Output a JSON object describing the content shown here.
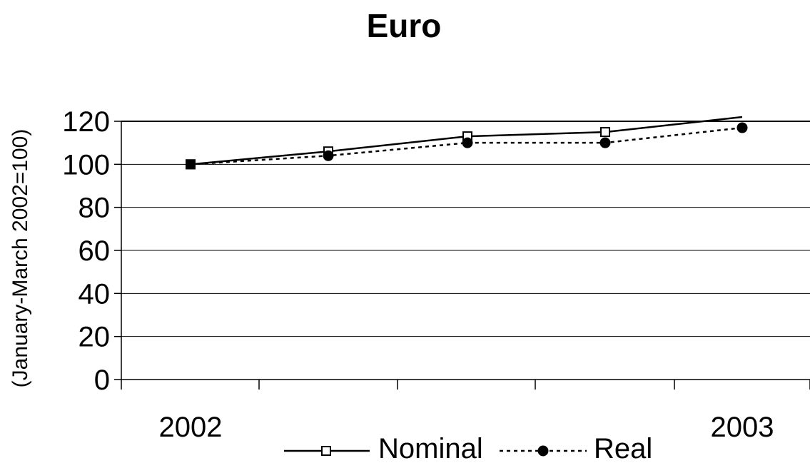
{
  "chart_data": {
    "type": "line",
    "title": "Euro",
    "ylabel": "(January-March 2002=100)",
    "xlabel": "",
    "x_tick_labels": [
      "2002",
      "2003"
    ],
    "x": [
      "2002",
      "",
      "",
      "",
      "2003"
    ],
    "ylim": [
      0,
      120
    ],
    "y_ticks": [
      0,
      20,
      40,
      60,
      80,
      100,
      120
    ],
    "grid": true,
    "legend_position": "bottom",
    "series": [
      {
        "name": "Nominal",
        "values": [
          100,
          106,
          113,
          115,
          122
        ],
        "line_style": "solid",
        "marker": "open-square",
        "color": "#000000"
      },
      {
        "name": "Real",
        "values": [
          100,
          104,
          110,
          110,
          117
        ],
        "line_style": "dotted",
        "marker": "filled-circle",
        "color": "#000000"
      }
    ]
  }
}
